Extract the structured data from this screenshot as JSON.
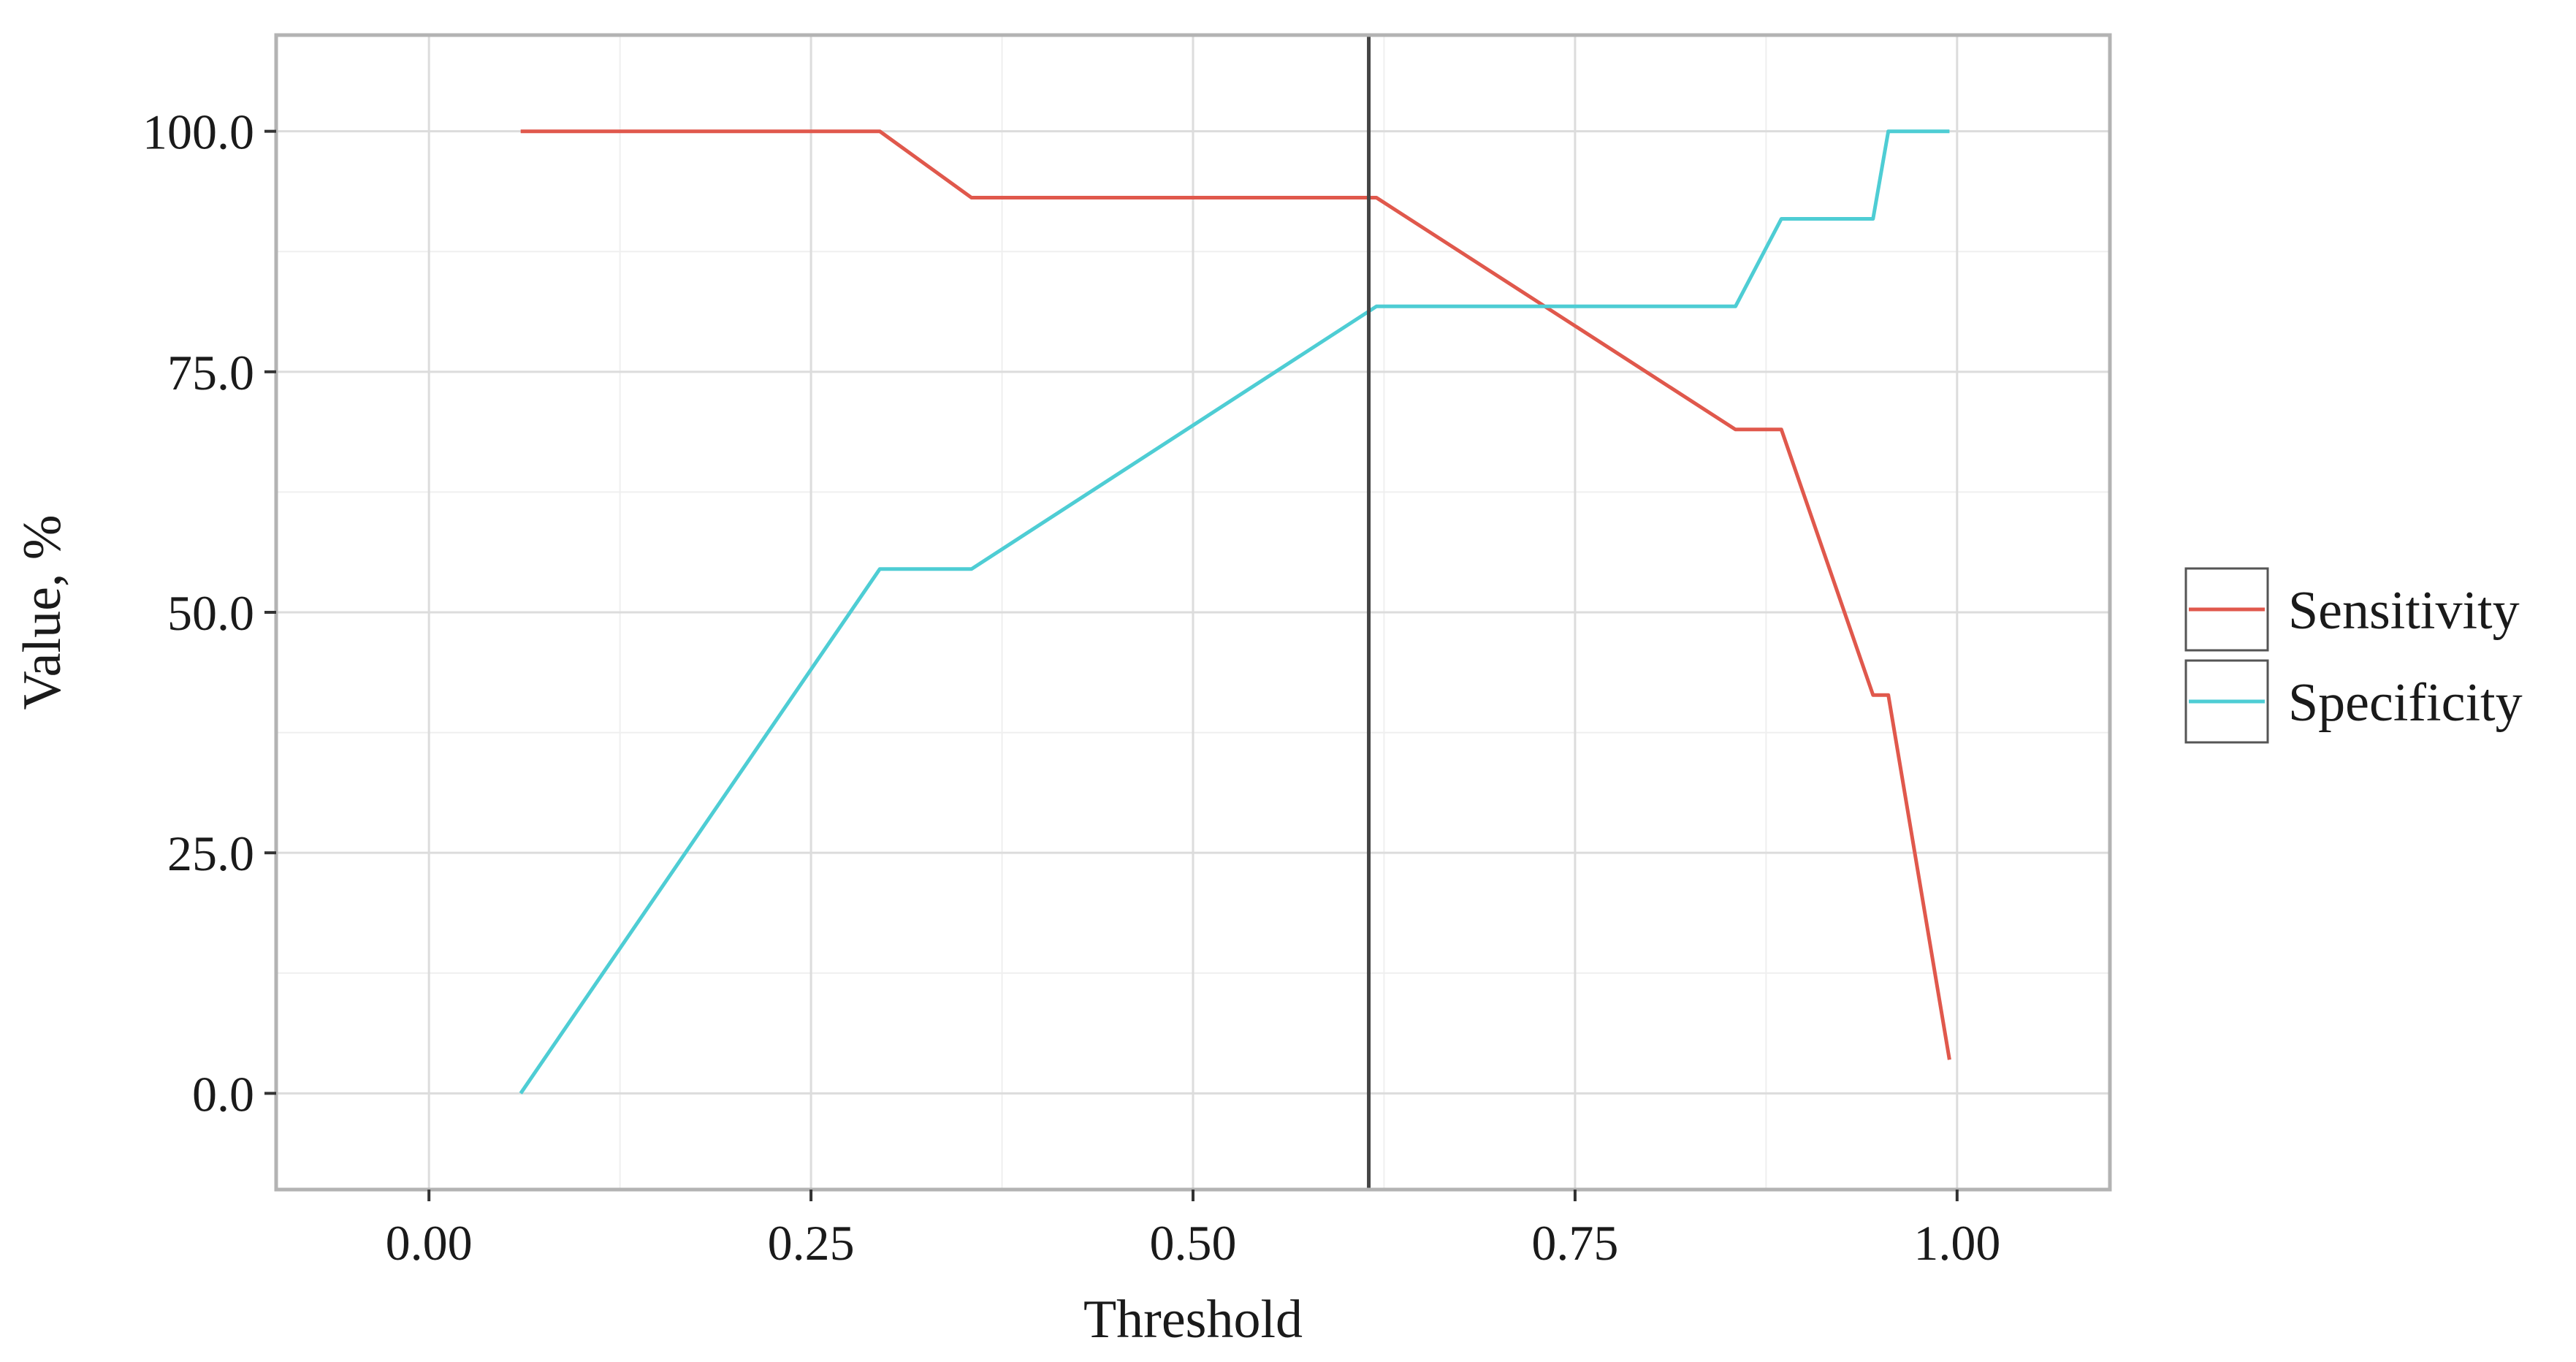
{
  "chart_data": {
    "type": "line",
    "xlabel": "Threshold",
    "ylabel": "Value, %",
    "xlim": [
      -0.1,
      1.1
    ],
    "ylim": [
      -10,
      110
    ],
    "x_ticks": [
      0.0,
      0.25,
      0.5,
      0.75,
      1.0
    ],
    "x_tick_labels": [
      "0.00",
      "0.25",
      "0.50",
      "0.75",
      "1.00"
    ],
    "y_ticks": [
      0,
      25,
      50,
      75,
      100
    ],
    "y_tick_labels": [
      "0.0",
      "25.0",
      "50.0",
      "75.0",
      "100.0"
    ],
    "grid": true,
    "legend_position": "right",
    "vline": {
      "x": 0.615,
      "color": "#444444"
    },
    "series": [
      {
        "name": "Sensitivity",
        "color": "#e0584c",
        "x": [
          0.06,
          0.295,
          0.355,
          0.62,
          0.855,
          0.885,
          0.945,
          0.955,
          0.995
        ],
        "y": [
          100,
          100,
          93.1,
          93.1,
          69,
          69,
          41.4,
          41.4,
          3.5
        ]
      },
      {
        "name": "Specificity",
        "color": "#4ecdd4",
        "x": [
          0.06,
          0.295,
          0.355,
          0.62,
          0.855,
          0.885,
          0.945,
          0.955,
          0.995
        ],
        "y": [
          0,
          54.5,
          54.5,
          81.8,
          81.8,
          90.9,
          90.9,
          100,
          100
        ]
      }
    ]
  }
}
